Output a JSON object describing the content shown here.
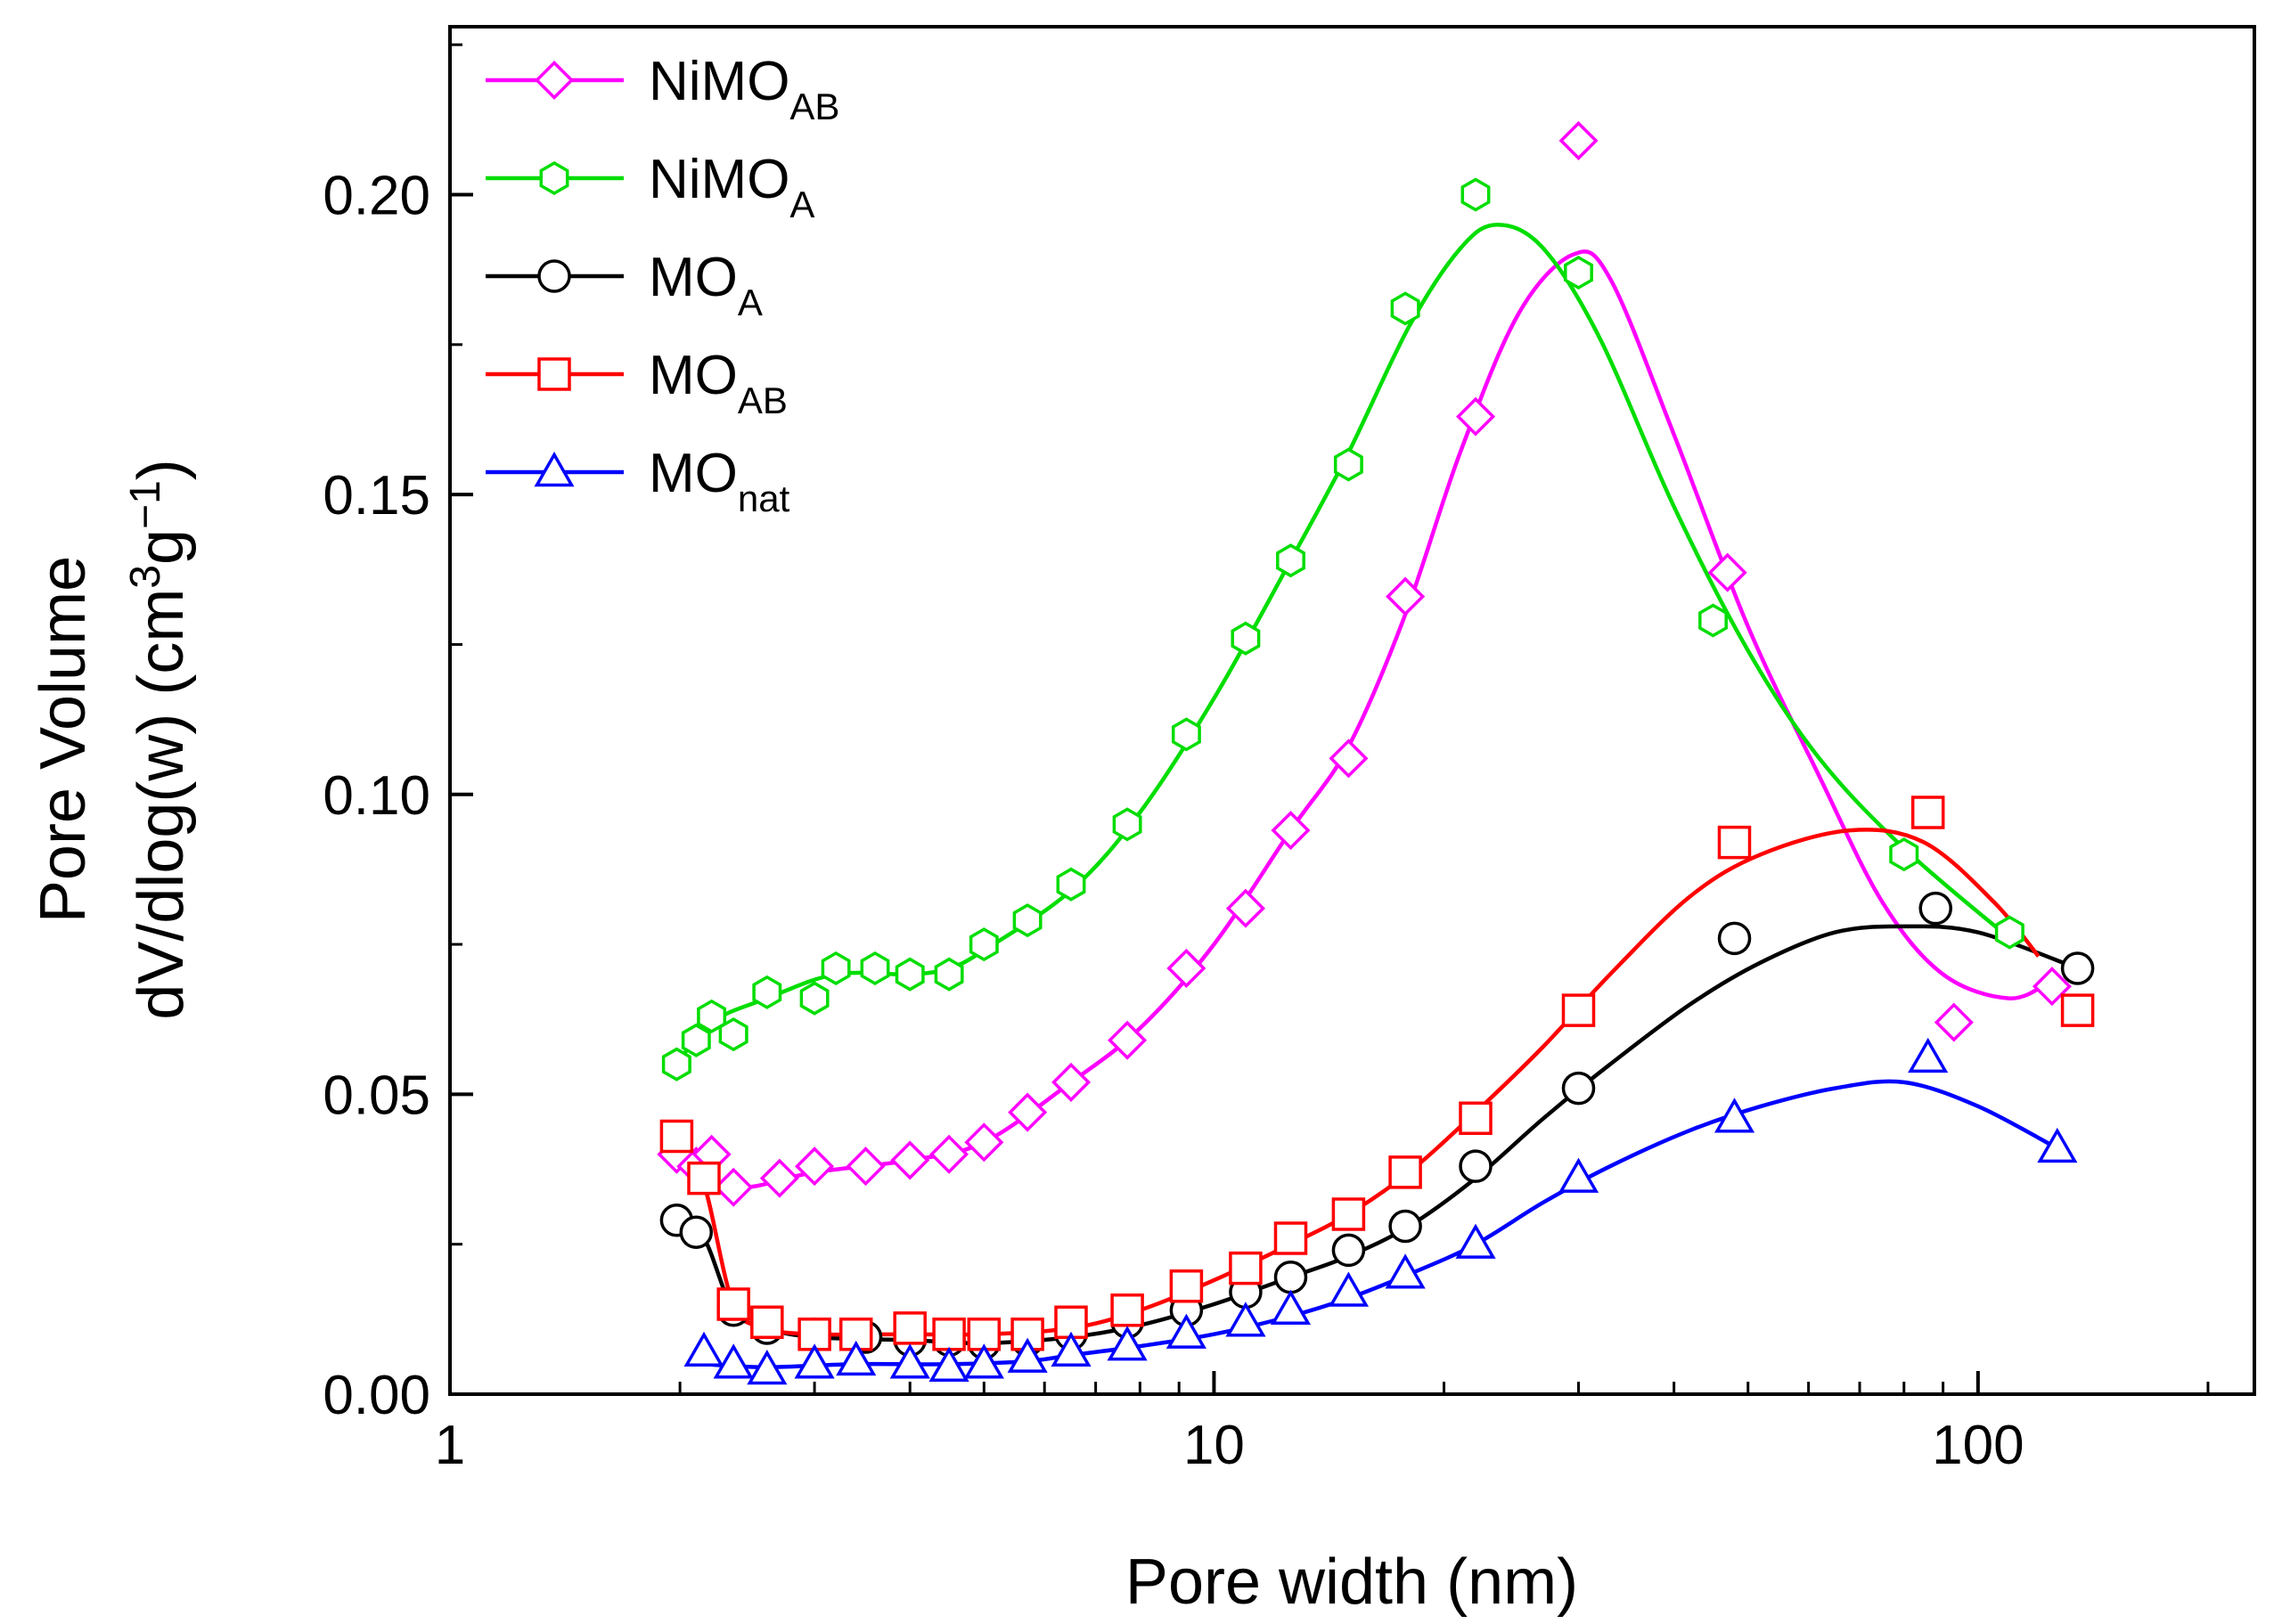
{
  "chart_data": {
    "type": "line",
    "title": "",
    "xlabel": "Pore width (nm)",
    "ylabel_lines": [
      "Pore Volume",
      "dV/dlog(w) (cm",
      "3",
      "g",
      "−1",
      ")"
    ],
    "xscale": "log",
    "xlim": [
      1,
      230
    ],
    "ylim": [
      0,
      0.228
    ],
    "x_ticks": [
      {
        "value": 1,
        "label": "1"
      },
      {
        "value": 10,
        "label": "10"
      },
      {
        "value": 100,
        "label": "100"
      }
    ],
    "y_ticks": [
      {
        "value": 0.0,
        "label": "0.00"
      },
      {
        "value": 0.05,
        "label": "0.05"
      },
      {
        "value": 0.1,
        "label": "0.10"
      },
      {
        "value": 0.15,
        "label": "0.15"
      },
      {
        "value": 0.2,
        "label": "0.20"
      }
    ],
    "y_minor_ticks": [
      0.025,
      0.075,
      0.125,
      0.175,
      0.225
    ],
    "legend_position": "top-left",
    "series": [
      {
        "name": "NiMO",
        "sub": "AB",
        "color": "#ff00ff",
        "marker": "diamond",
        "points": [
          [
            1.98,
            0.04
          ],
          [
            2.1,
            0.038
          ],
          [
            2.2,
            0.04
          ],
          [
            2.35,
            0.0345
          ],
          [
            2.7,
            0.036
          ],
          [
            3.0,
            0.038
          ],
          [
            3.5,
            0.038
          ],
          [
            4.0,
            0.039
          ],
          [
            4.5,
            0.04
          ],
          [
            5.0,
            0.042
          ],
          [
            5.7,
            0.047
          ],
          [
            6.5,
            0.052
          ],
          [
            7.7,
            0.059
          ],
          [
            9.2,
            0.071
          ],
          [
            11.0,
            0.081
          ],
          [
            12.6,
            0.094
          ],
          [
            15.0,
            0.106
          ],
          [
            17.8,
            0.133
          ],
          [
            22.0,
            0.163
          ],
          [
            30.0,
            0.209
          ],
          [
            47.0,
            0.137
          ],
          [
            93.0,
            0.062
          ],
          [
            125.0,
            0.068
          ]
        ],
        "curve": [
          [
            1.98,
            0.04
          ],
          [
            2.35,
            0.0345
          ],
          [
            3.0,
            0.037
          ],
          [
            4.0,
            0.039
          ],
          [
            5.0,
            0.042
          ],
          [
            6.5,
            0.052
          ],
          [
            8.0,
            0.061
          ],
          [
            10.0,
            0.075
          ],
          [
            12.6,
            0.094
          ],
          [
            15.0,
            0.108
          ],
          [
            17.8,
            0.13
          ],
          [
            21.0,
            0.157
          ],
          [
            25.0,
            0.18
          ],
          [
            29.5,
            0.19
          ],
          [
            33.0,
            0.186
          ],
          [
            40.0,
            0.16
          ],
          [
            50.0,
            0.128
          ],
          [
            62.0,
            0.103
          ],
          [
            75.0,
            0.082
          ],
          [
            90.0,
            0.07
          ],
          [
            110.0,
            0.066
          ],
          [
            125.0,
            0.069
          ]
        ]
      },
      {
        "name": "NiMO",
        "sub": "A",
        "color": "#00dd00",
        "marker": "hexagon",
        "points": [
          [
            1.98,
            0.055
          ],
          [
            2.1,
            0.059
          ],
          [
            2.2,
            0.063
          ],
          [
            2.35,
            0.06
          ],
          [
            2.6,
            0.067
          ],
          [
            3.0,
            0.066
          ],
          [
            3.2,
            0.071
          ],
          [
            3.6,
            0.071
          ],
          [
            4.0,
            0.07
          ],
          [
            4.5,
            0.07
          ],
          [
            5.0,
            0.075
          ],
          [
            5.7,
            0.079
          ],
          [
            6.5,
            0.085
          ],
          [
            7.7,
            0.095
          ],
          [
            9.2,
            0.11
          ],
          [
            11.0,
            0.126
          ],
          [
            12.6,
            0.139
          ],
          [
            15.0,
            0.155
          ],
          [
            17.8,
            0.181
          ],
          [
            22.0,
            0.2
          ],
          [
            30.0,
            0.187
          ],
          [
            45.0,
            0.129
          ],
          [
            80.0,
            0.09
          ],
          [
            110.0,
            0.077
          ]
        ],
        "curve": [
          [
            1.98,
            0.055
          ],
          [
            2.2,
            0.062
          ],
          [
            2.6,
            0.066
          ],
          [
            3.2,
            0.07
          ],
          [
            4.0,
            0.07
          ],
          [
            4.5,
            0.071
          ],
          [
            5.0,
            0.074
          ],
          [
            6.5,
            0.084
          ],
          [
            8.0,
            0.097
          ],
          [
            10.0,
            0.116
          ],
          [
            12.6,
            0.139
          ],
          [
            15.0,
            0.157
          ],
          [
            18.0,
            0.178
          ],
          [
            21.0,
            0.191
          ],
          [
            23.5,
            0.195
          ],
          [
            27.0,
            0.191
          ],
          [
            32.0,
            0.176
          ],
          [
            40.0,
            0.148
          ],
          [
            50.0,
            0.124
          ],
          [
            62.0,
            0.106
          ],
          [
            80.0,
            0.091
          ],
          [
            110.0,
            0.076
          ]
        ]
      },
      {
        "name": "MO",
        "sub": "A",
        "color": "#000000",
        "marker": "circle",
        "points": [
          [
            1.98,
            0.029
          ],
          [
            2.1,
            0.027
          ],
          [
            2.35,
            0.014
          ],
          [
            2.6,
            0.011
          ],
          [
            3.0,
            0.01
          ],
          [
            3.5,
            0.0095
          ],
          [
            4.0,
            0.009
          ],
          [
            4.5,
            0.009
          ],
          [
            5.0,
            0.0085
          ],
          [
            5.7,
            0.009
          ],
          [
            6.5,
            0.01
          ],
          [
            7.7,
            0.012
          ],
          [
            9.2,
            0.014
          ],
          [
            11.0,
            0.017
          ],
          [
            12.6,
            0.0195
          ],
          [
            15.0,
            0.024
          ],
          [
            17.8,
            0.028
          ],
          [
            22.0,
            0.038
          ],
          [
            30.0,
            0.051
          ],
          [
            48.0,
            0.076
          ],
          [
            88.0,
            0.081
          ],
          [
            135.0,
            0.071
          ]
        ],
        "curve": [
          [
            1.98,
            0.029
          ],
          [
            2.15,
            0.026
          ],
          [
            2.35,
            0.014
          ],
          [
            2.6,
            0.011
          ],
          [
            3.0,
            0.0095
          ],
          [
            4.0,
            0.009
          ],
          [
            5.0,
            0.0085
          ],
          [
            6.5,
            0.0095
          ],
          [
            8.0,
            0.0115
          ],
          [
            10.0,
            0.015
          ],
          [
            12.6,
            0.0195
          ],
          [
            15.0,
            0.023
          ],
          [
            18.0,
            0.028
          ],
          [
            22.0,
            0.036
          ],
          [
            27.0,
            0.046
          ],
          [
            33.0,
            0.055
          ],
          [
            42.0,
            0.065
          ],
          [
            52.0,
            0.072
          ],
          [
            65.0,
            0.077
          ],
          [
            80.0,
            0.078
          ],
          [
            100.0,
            0.077
          ],
          [
            135.0,
            0.071
          ]
        ]
      },
      {
        "name": "MO",
        "sub": "AB",
        "color": "#ff0000",
        "marker": "square",
        "points": [
          [
            1.98,
            0.043
          ],
          [
            2.15,
            0.036
          ],
          [
            2.35,
            0.015
          ],
          [
            2.6,
            0.012
          ],
          [
            3.0,
            0.01
          ],
          [
            3.4,
            0.01
          ],
          [
            4.0,
            0.011
          ],
          [
            4.5,
            0.01
          ],
          [
            5.0,
            0.01
          ],
          [
            5.7,
            0.01
          ],
          [
            6.5,
            0.012
          ],
          [
            7.7,
            0.014
          ],
          [
            9.2,
            0.018
          ],
          [
            11.0,
            0.021
          ],
          [
            12.6,
            0.026
          ],
          [
            15.0,
            0.03
          ],
          [
            17.8,
            0.037
          ],
          [
            22.0,
            0.046
          ],
          [
            30.0,
            0.064
          ],
          [
            48.0,
            0.092
          ],
          [
            86.0,
            0.097
          ],
          [
            135.0,
            0.064
          ]
        ],
        "curve": [
          [
            1.98,
            0.043
          ],
          [
            2.15,
            0.035
          ],
          [
            2.35,
            0.015
          ],
          [
            2.6,
            0.011
          ],
          [
            3.0,
            0.01
          ],
          [
            4.0,
            0.01
          ],
          [
            5.0,
            0.01
          ],
          [
            6.5,
            0.011
          ],
          [
            8.0,
            0.014
          ],
          [
            10.0,
            0.019
          ],
          [
            12.6,
            0.025
          ],
          [
            15.0,
            0.03
          ],
          [
            18.0,
            0.037
          ],
          [
            22.0,
            0.047
          ],
          [
            27.0,
            0.058
          ],
          [
            33.0,
            0.07
          ],
          [
            42.0,
            0.083
          ],
          [
            52.0,
            0.09
          ],
          [
            68.0,
            0.094
          ],
          [
            85.0,
            0.092
          ],
          [
            105.0,
            0.082
          ],
          [
            120.0,
            0.073
          ]
        ]
      },
      {
        "name": "MO",
        "sub": "nat",
        "color": "#0000ff",
        "marker": "triangle",
        "points": [
          [
            2.15,
            0.007
          ],
          [
            2.35,
            0.005
          ],
          [
            2.6,
            0.004
          ],
          [
            3.0,
            0.005
          ],
          [
            3.4,
            0.0055
          ],
          [
            4.0,
            0.005
          ],
          [
            4.5,
            0.0045
          ],
          [
            5.0,
            0.005
          ],
          [
            5.7,
            0.006
          ],
          [
            6.5,
            0.007
          ],
          [
            7.7,
            0.008
          ],
          [
            9.2,
            0.01
          ],
          [
            11.0,
            0.012
          ],
          [
            12.6,
            0.014
          ],
          [
            15.0,
            0.017
          ],
          [
            17.8,
            0.02
          ],
          [
            22.0,
            0.025
          ],
          [
            30.0,
            0.036
          ],
          [
            48.0,
            0.046
          ],
          [
            86.0,
            0.056
          ],
          [
            127.0,
            0.041
          ]
        ],
        "curve": [
          [
            2.15,
            0.005
          ],
          [
            2.6,
            0.0045
          ],
          [
            3.4,
            0.005
          ],
          [
            4.5,
            0.005
          ],
          [
            5.7,
            0.0055
          ],
          [
            6.5,
            0.0065
          ],
          [
            8.0,
            0.008
          ],
          [
            10.0,
            0.01
          ],
          [
            12.6,
            0.013
          ],
          [
            15.0,
            0.016
          ],
          [
            18.0,
            0.02
          ],
          [
            22.0,
            0.025
          ],
          [
            27.0,
            0.032
          ],
          [
            33.0,
            0.038
          ],
          [
            42.0,
            0.044
          ],
          [
            52.0,
            0.048
          ],
          [
            65.0,
            0.051
          ],
          [
            80.0,
            0.052
          ],
          [
            100.0,
            0.048
          ],
          [
            127.0,
            0.041
          ]
        ]
      }
    ]
  }
}
